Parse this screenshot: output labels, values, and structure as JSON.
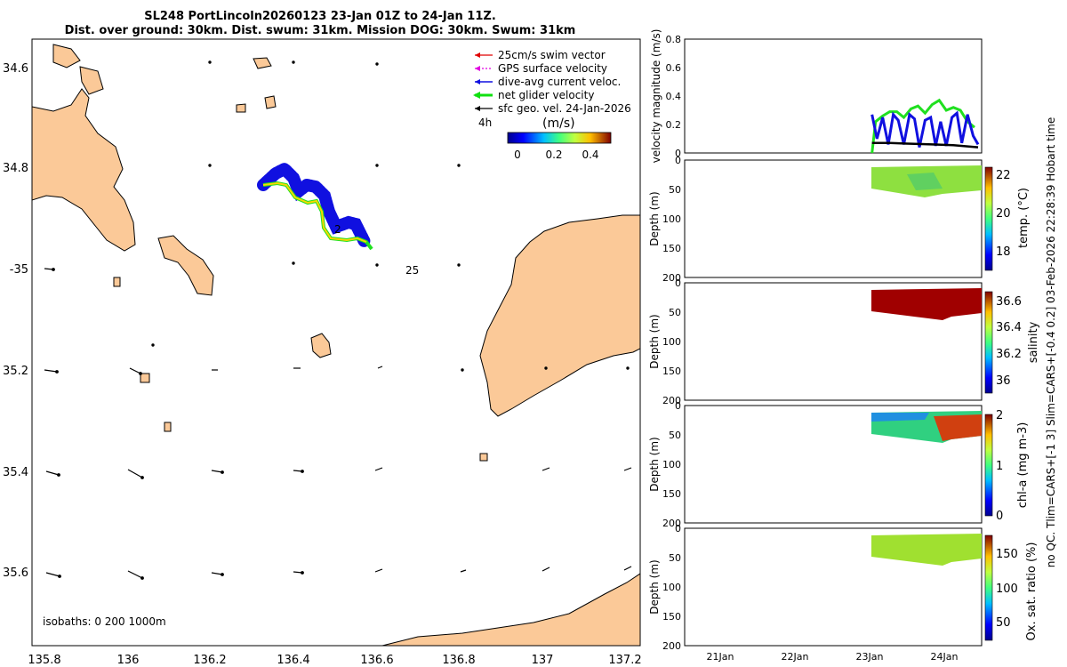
{
  "title": {
    "line1": "SL248 PortLincoln20260123 23-Jan 01Z to 24-Jan 11Z.",
    "line2": "Dist. over ground: 30km. Dist. swum: 31km. Mission DOG: 30km. Swum: 31km"
  },
  "map": {
    "lon_ticks": [
      "135.8",
      "136",
      "136.2",
      "136.4",
      "136.6",
      "136.8",
      "137",
      "137.2"
    ],
    "lat_ticks": [
      "34.6",
      "34.8",
      "-35",
      "35.2",
      "35.4",
      "35.6"
    ],
    "legend": [
      {
        "label": "25cm/s swim vector",
        "color": "#e00000"
      },
      {
        "label": "GPS surface velocity",
        "color": "#e000e0"
      },
      {
        "label": "dive-avg current veloc.",
        "color": "#1010e0"
      },
      {
        "label": "net glider velocity",
        "color": "#10e010"
      },
      {
        "label": "sfc geo. vel. 24-Jan-2026",
        "color": "#000000"
      }
    ],
    "speed_label": "4h",
    "colorbar_unit": "(m/s)",
    "colorbar_ticks": [
      "0",
      "0.2",
      "0.4"
    ],
    "isobaths_label": "isobaths: 0   200  1000m",
    "track_marker_label": "2",
    "annotation_25": "25",
    "land_color": "#fbc998"
  },
  "right_label": "no QC. Tlim=CARS+[-1 3] Slim=CARS+[-0.4 0.2] 03-Feb-2026 22:28:39 Hobart time",
  "chart_data": [
    {
      "type": "line",
      "ylabel": "velocity magnitude (m/s)",
      "ylim": [
        0,
        0.8
      ],
      "yticks": [
        "0",
        "0.2",
        "0.4",
        "0.6",
        "0.8"
      ],
      "xlim_days": [
        20.4,
        24.6
      ],
      "series": [
        {
          "color": "#20e020",
          "x_day": [
            23.05,
            23.1,
            23.2,
            23.3,
            23.4,
            23.5,
            23.6,
            23.7,
            23.8,
            23.9,
            24.0,
            24.1,
            24.2,
            24.3,
            24.4,
            24.5
          ],
          "values": [
            0.0,
            0.22,
            0.26,
            0.29,
            0.29,
            0.25,
            0.31,
            0.33,
            0.28,
            0.34,
            0.37,
            0.3,
            0.32,
            0.3,
            0.22,
            0.18
          ]
        },
        {
          "color": "#1010e0",
          "x_day": [
            23.05,
            23.12,
            23.2,
            23.28,
            23.35,
            23.42,
            23.5,
            23.58,
            23.65,
            23.72,
            23.8,
            23.88,
            23.95,
            24.02,
            24.1,
            24.18,
            24.25,
            24.32,
            24.4,
            24.48,
            24.55
          ],
          "values": [
            0.27,
            0.1,
            0.25,
            0.06,
            0.27,
            0.23,
            0.06,
            0.27,
            0.24,
            0.04,
            0.23,
            0.25,
            0.05,
            0.22,
            0.05,
            0.25,
            0.28,
            0.07,
            0.27,
            0.12,
            0.06
          ]
        },
        {
          "color": "#000000",
          "x_day": [
            23.05,
            23.3,
            23.6,
            23.9,
            24.2,
            24.55
          ],
          "values": [
            0.07,
            0.07,
            0.065,
            0.06,
            0.055,
            0.04
          ]
        }
      ]
    },
    {
      "type": "heatmap",
      "ylabel": "Depth (m)",
      "yticks": [
        "0",
        "50",
        "100",
        "150",
        "200"
      ],
      "colorbar_label": "temp. (°C)",
      "colorbar_ticks": [
        "18",
        "20",
        "22"
      ]
    },
    {
      "type": "heatmap",
      "ylabel": "Depth (m)",
      "yticks": [
        "0",
        "50",
        "100",
        "150",
        "200"
      ],
      "colorbar_label": "salinity",
      "colorbar_ticks": [
        "36",
        "36.2",
        "36.4",
        "36.6"
      ]
    },
    {
      "type": "heatmap",
      "ylabel": "Depth (m)",
      "yticks": [
        "0",
        "50",
        "100",
        "150",
        "200"
      ],
      "colorbar_label": "chl-a (mg m-3)",
      "colorbar_ticks": [
        "0",
        "1",
        "2"
      ]
    },
    {
      "type": "heatmap",
      "ylabel": "Depth (m)",
      "yticks": [
        "0",
        "50",
        "100",
        "150",
        "200"
      ],
      "colorbar_label": "Ox. sat. ratio (%)",
      "colorbar_ticks": [
        "50",
        "100",
        "150"
      ],
      "xticks": [
        "21Jan",
        "22Jan",
        "23Jan",
        "24Jan"
      ]
    }
  ]
}
